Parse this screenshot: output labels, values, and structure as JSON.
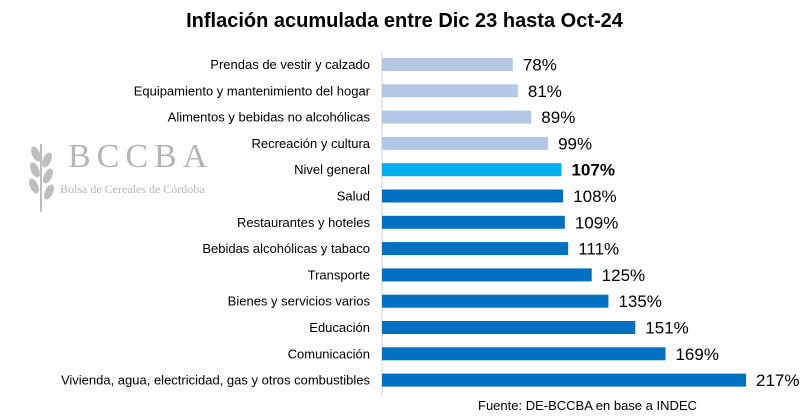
{
  "chart_data": {
    "type": "bar",
    "orientation": "horizontal",
    "title": "Inflación acumulada entre Dic 23 hasta Oct-24",
    "categories": [
      "Prendas de vestir y calzado",
      "Equipamiento y mantenimiento del hogar",
      "Alimentos y bebidas no alcohólicas",
      "Recreación y cultura",
      "Nivel general",
      "Salud",
      "Restaurantes y hoteles",
      "Bebidas alcohólicas y tabaco",
      "Transporte",
      "Bienes y servicios varios",
      "Educación",
      "Comunicación",
      "Vivienda, agua, electricidad, gas y otros combustibles"
    ],
    "values": [
      78,
      81,
      89,
      99,
      107,
      108,
      109,
      111,
      125,
      135,
      151,
      169,
      217
    ],
    "value_labels": [
      "78%",
      "81%",
      "89%",
      "99%",
      "107%",
      "108%",
      "109%",
      "111%",
      "125%",
      "135%",
      "151%",
      "169%",
      "217%"
    ],
    "colors": [
      "#b4c7e7",
      "#b4c7e7",
      "#b4c7e7",
      "#b4c7e7",
      "#00b0f0",
      "#0070c0",
      "#0070c0",
      "#0070c0",
      "#0070c0",
      "#0070c0",
      "#0070c0",
      "#0070c0",
      "#0070c0"
    ],
    "highlight_index": 4,
    "xlim": [
      0,
      217
    ],
    "xlabel": "",
    "ylabel": "",
    "source": "Fuente: DE-BCCBA en base a INDEC"
  },
  "watermark": {
    "letters": "BCCBA",
    "subtitle": "Bolsa de Cereales de Córdoba"
  }
}
